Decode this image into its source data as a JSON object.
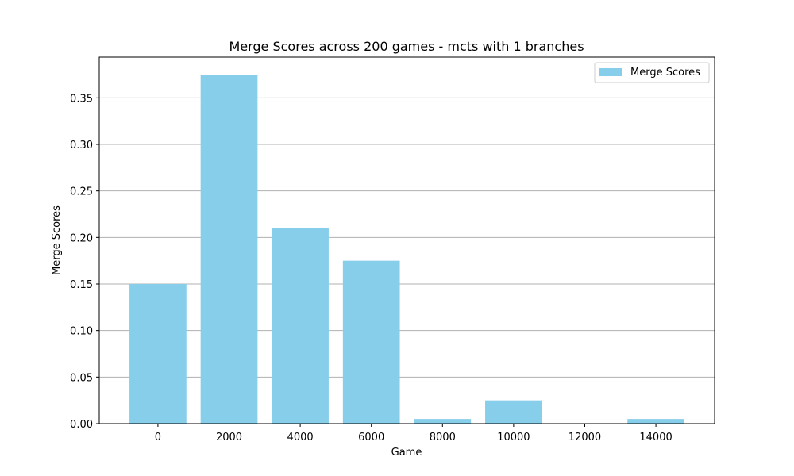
{
  "chart_data": {
    "type": "bar",
    "title": "Merge Scores across 200 games - mcts with 1 branches",
    "xlabel": "Game",
    "ylabel": "Merge Scores",
    "x": [
      0,
      2000,
      4000,
      6000,
      8000,
      10000,
      12000,
      14000
    ],
    "values": [
      0.15,
      0.375,
      0.21,
      0.175,
      0.005,
      0.025,
      0.0,
      0.005
    ],
    "bar_width": 1600,
    "xlim": [
      -1650,
      15650
    ],
    "ylim": [
      0,
      0.39375
    ],
    "xticks": [
      "0",
      "2000",
      "4000",
      "6000",
      "8000",
      "10000",
      "12000",
      "14000"
    ],
    "yticks": [
      "0.00",
      "0.05",
      "0.10",
      "0.15",
      "0.20",
      "0.25",
      "0.30",
      "0.35"
    ],
    "grid": "y",
    "legend": {
      "label": "Merge Scores",
      "placement": "upper-right"
    },
    "colors": {
      "bar": "#87ceeb",
      "grid": "#b0b0b0",
      "axis": "#000000"
    }
  }
}
